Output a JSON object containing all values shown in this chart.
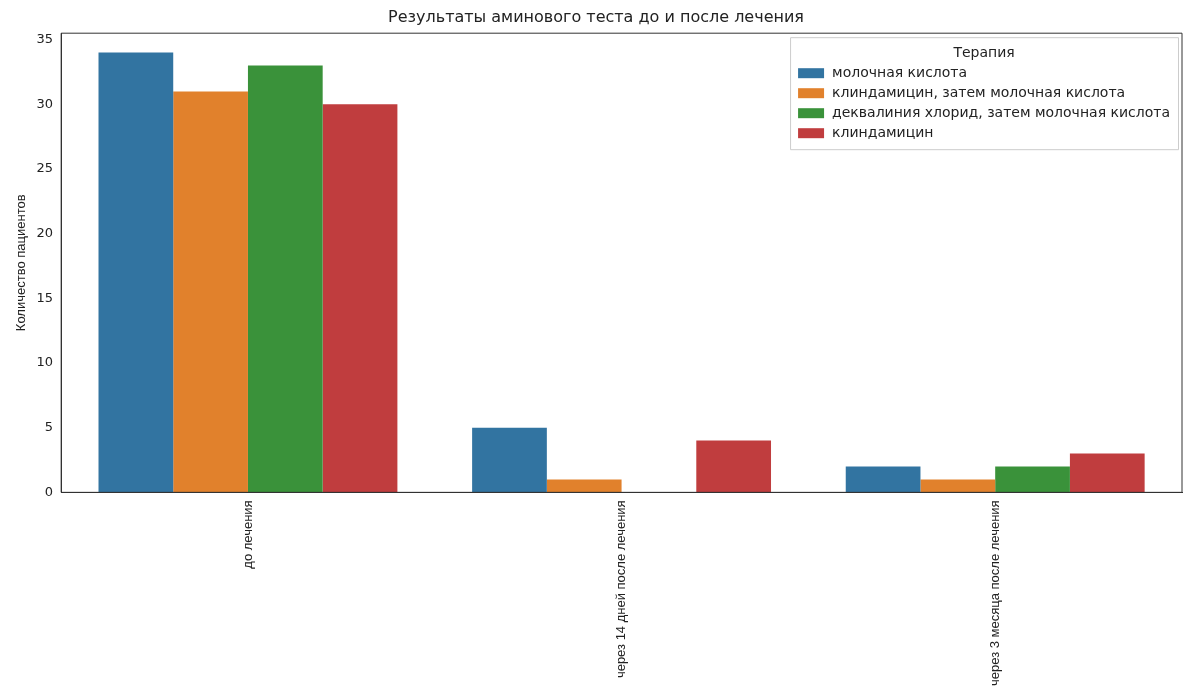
{
  "chart_data": {
    "type": "bar",
    "title": "Результаты аминового теста до и после лечения",
    "ylabel": "Количество пациентов",
    "legend_title": "Терапия",
    "legend": "top right",
    "grid": false,
    "categories": [
      "до лечения",
      "через 14 дней после лечения",
      "через 3 месяца после лечения"
    ],
    "series": [
      {
        "name": "молочная кислота",
        "color": "#3274a1",
        "values": [
          34,
          5,
          2
        ]
      },
      {
        "name": "клиндамицин, затем молочная кислота",
        "color": "#e1812c",
        "values": [
          31,
          1,
          1
        ]
      },
      {
        "name": "деквалиния хлорид, затем молочная кислота",
        "color": "#3a923a",
        "values": [
          33,
          0,
          2
        ]
      },
      {
        "name": "клиндамицин",
        "color": "#c03d3e",
        "values": [
          30,
          4,
          3
        ]
      }
    ],
    "ylim": [
      0,
      35.5
    ],
    "yticks": [
      0,
      5,
      10,
      15,
      20,
      25,
      30,
      35
    ]
  }
}
